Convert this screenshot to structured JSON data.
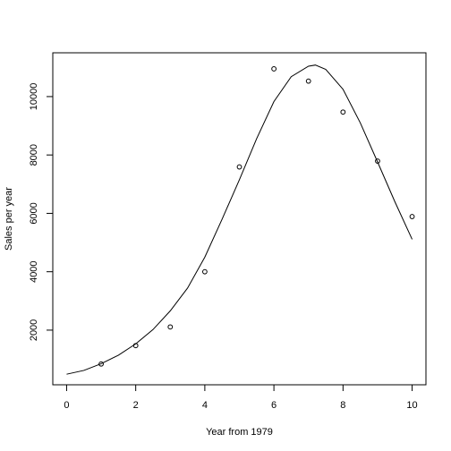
{
  "chart_data": {
    "type": "scatter",
    "title": "",
    "xlabel": "Year from 1979",
    "ylabel": "Sales per year",
    "xlim": [
      -0.4,
      10.4
    ],
    "ylim": [
      128,
      11500
    ],
    "grid": false,
    "x_ticks": [
      0,
      2,
      4,
      6,
      8,
      10
    ],
    "x_tick_labels": [
      "0",
      "2",
      "4",
      "6",
      "8",
      "10"
    ],
    "y_ticks": [
      2000,
      4000,
      6000,
      8000,
      10000
    ],
    "y_tick_labels": [
      "2000",
      "4000",
      "6000",
      "8000",
      "10000"
    ],
    "points": {
      "x": [
        1,
        2,
        3,
        4,
        5,
        6,
        7,
        8,
        9,
        10
      ],
      "y": [
        840,
        1470,
        2110,
        4000,
        7590,
        10950,
        10530,
        9470,
        7790,
        5890
      ]
    },
    "fitted_curve": {
      "x": [
        0,
        0.5,
        1,
        1.5,
        2,
        2.5,
        3,
        3.5,
        4,
        4.5,
        5,
        5.5,
        6,
        6.5,
        7,
        7.2,
        7.5,
        8,
        8.5,
        9,
        9.5,
        10
      ],
      "y": [
        490,
        620,
        850,
        1140,
        1530,
        2020,
        2660,
        3440,
        4500,
        5800,
        7150,
        8560,
        9830,
        10680,
        11040,
        11080,
        10930,
        10250,
        9100,
        7760,
        6400,
        5110
      ]
    }
  }
}
